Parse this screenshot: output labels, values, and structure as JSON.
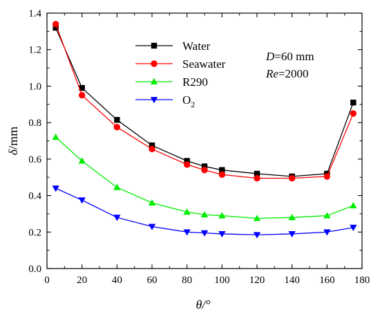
{
  "chart_data": {
    "type": "line",
    "x": [
      5,
      20,
      40,
      60,
      80,
      90,
      100,
      120,
      140,
      160,
      175
    ],
    "series": [
      {
        "name": "Water",
        "color": "#000000",
        "marker": "square",
        "values": [
          1.32,
          0.99,
          0.815,
          0.675,
          0.59,
          0.56,
          0.54,
          0.52,
          0.505,
          0.52,
          0.91
        ]
      },
      {
        "name": "Seawater",
        "color": "#ff0000",
        "marker": "circle",
        "values": [
          1.34,
          0.95,
          0.775,
          0.655,
          0.57,
          0.54,
          0.515,
          0.495,
          0.495,
          0.505,
          0.85
        ]
      },
      {
        "name": "R290",
        "color": "#00ee00",
        "marker": "triangle-up",
        "values": [
          0.72,
          0.59,
          0.445,
          0.36,
          0.31,
          0.295,
          0.29,
          0.275,
          0.28,
          0.29,
          0.345
        ]
      },
      {
        "name": "O",
        "name_sub": "2",
        "color": "#0000ff",
        "marker": "triangle-down",
        "values": [
          0.44,
          0.375,
          0.28,
          0.23,
          0.2,
          0.195,
          0.19,
          0.185,
          0.19,
          0.2,
          0.225
        ]
      }
    ],
    "xlabel": {
      "symbol": "θ",
      "unit": "/°"
    },
    "ylabel": {
      "symbol": "δ",
      "unit": "/mm"
    },
    "xlim": [
      0,
      180
    ],
    "ylim": [
      0,
      1.4
    ],
    "xticks": [
      "0",
      "20",
      "40",
      "60",
      "80",
      "100",
      "120",
      "140",
      "160",
      "180"
    ],
    "yticks": [
      "0.0",
      "0.2",
      "0.4",
      "0.6",
      "0.8",
      "1.0",
      "1.2",
      "1.4"
    ],
    "grid": false,
    "legend": "top-center",
    "annotations": [
      {
        "italic": "D",
        "rest": "=60 mm"
      },
      {
        "italic": "Re",
        "rest": "=2000"
      }
    ]
  }
}
